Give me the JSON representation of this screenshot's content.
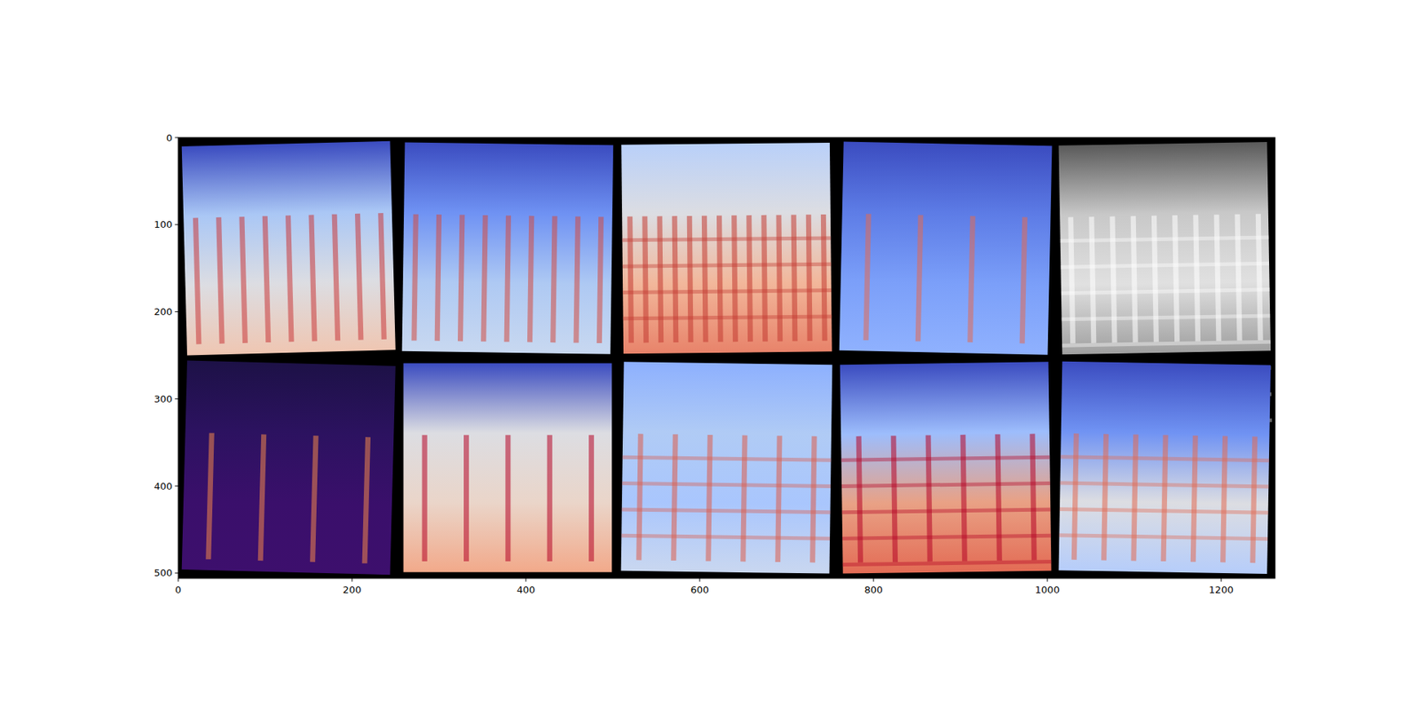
{
  "chart_data": {
    "type": "image",
    "xlim": [
      0,
      1262
    ],
    "ylim": [
      506,
      0
    ],
    "xticks": [
      0,
      200,
      400,
      600,
      800,
      1000,
      1200
    ],
    "yticks": [
      0,
      100,
      200,
      300,
      400,
      500
    ],
    "grid": false
  }
}
